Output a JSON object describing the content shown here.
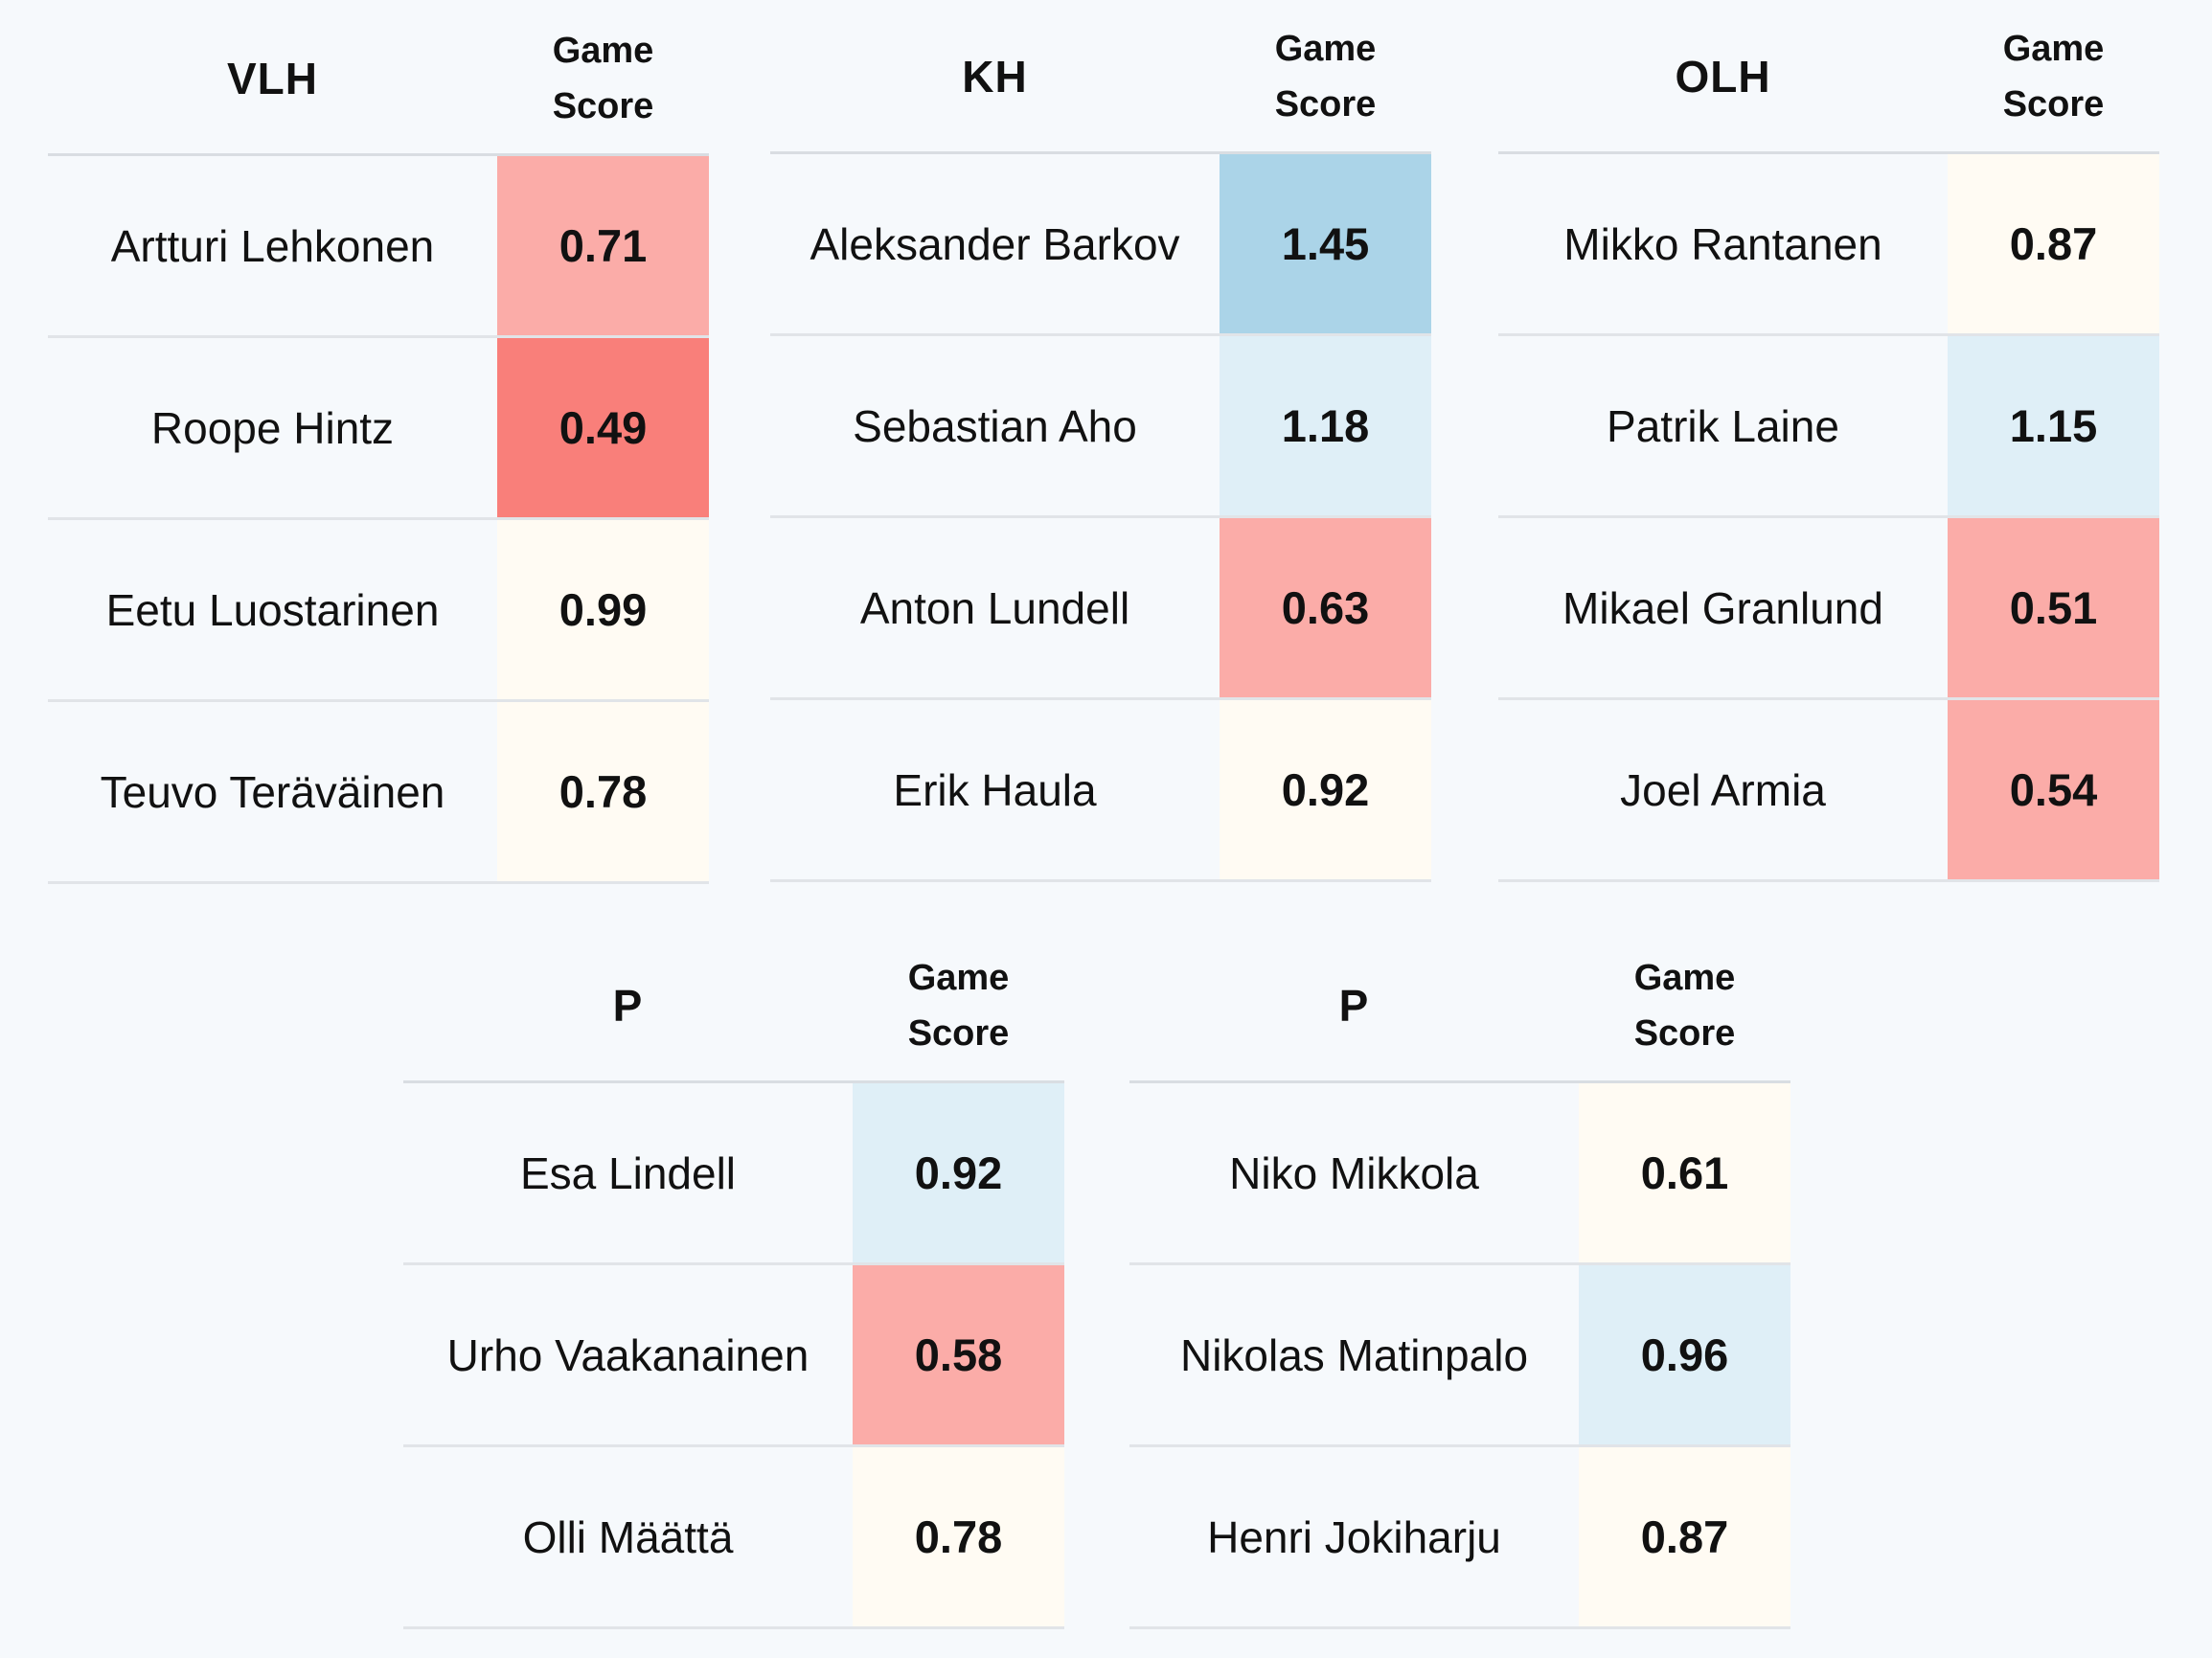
{
  "score_header": [
    "Game",
    "Score"
  ],
  "colors": {
    "background": "#f6f9fc",
    "strong_red": "#f97f7a",
    "light_red": "#fbaca8",
    "neutral": "#fffbf3",
    "light_blue": "#dfeff7",
    "strong_blue": "#abd4e8"
  },
  "chart_data": {
    "type": "table",
    "value_label": "Game Score",
    "groups": [
      {
        "title": "VLH",
        "players": [
          {
            "name": "Artturi Lehkonen",
            "score": "0.71",
            "color": "#fbaca8"
          },
          {
            "name": "Roope Hintz",
            "score": "0.49",
            "color": "#f97f7a"
          },
          {
            "name": "Eetu Luostarinen",
            "score": "0.99",
            "color": "#fffbf3"
          },
          {
            "name": "Teuvo Teräväinen",
            "score": "0.78",
            "color": "#fffbf3"
          }
        ]
      },
      {
        "title": "KH",
        "players": [
          {
            "name": "Aleksander Barkov",
            "score": "1.45",
            "color": "#abd4e8"
          },
          {
            "name": "Sebastian Aho",
            "score": "1.18",
            "color": "#dfeff7"
          },
          {
            "name": "Anton Lundell",
            "score": "0.63",
            "color": "#fbaca8"
          },
          {
            "name": "Erik Haula",
            "score": "0.92",
            "color": "#fffbf3"
          }
        ]
      },
      {
        "title": "OLH",
        "players": [
          {
            "name": "Mikko Rantanen",
            "score": "0.87",
            "color": "#fffbf3"
          },
          {
            "name": "Patrik Laine",
            "score": "1.15",
            "color": "#dfeff7"
          },
          {
            "name": "Mikael Granlund",
            "score": "0.51",
            "color": "#fbaca8"
          },
          {
            "name": "Joel Armia",
            "score": "0.54",
            "color": "#fbaca8"
          }
        ]
      },
      {
        "title": "P",
        "players": [
          {
            "name": "Esa Lindell",
            "score": "0.92",
            "color": "#dfeff7"
          },
          {
            "name": "Urho Vaakanainen",
            "score": "0.58",
            "color": "#fbaca8"
          },
          {
            "name": "Olli Määttä",
            "score": "0.78",
            "color": "#fffbf3"
          }
        ]
      },
      {
        "title": "P",
        "players": [
          {
            "name": "Niko Mikkola",
            "score": "0.61",
            "color": "#fffbf3"
          },
          {
            "name": "Nikolas Matinpalo",
            "score": "0.96",
            "color": "#dfeff7"
          },
          {
            "name": "Henri Jokiharju",
            "score": "0.87",
            "color": "#fffbf3"
          }
        ]
      }
    ]
  }
}
